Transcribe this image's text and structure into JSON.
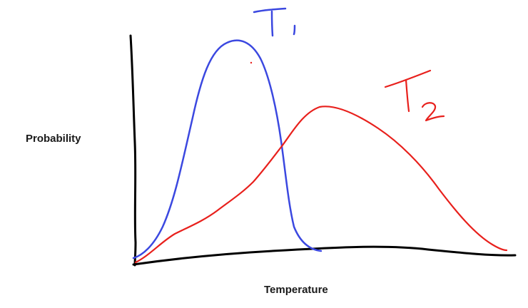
{
  "diagram": {
    "y_axis_label": "Probability",
    "x_axis_label": "Temperature",
    "curves": [
      {
        "label_letter": "T",
        "label_subscript": "1",
        "color": "#3b48e0"
      },
      {
        "label_letter": "T",
        "label_subscript": "2",
        "color": "#e8201c"
      }
    ],
    "axis_color": "#000000"
  }
}
